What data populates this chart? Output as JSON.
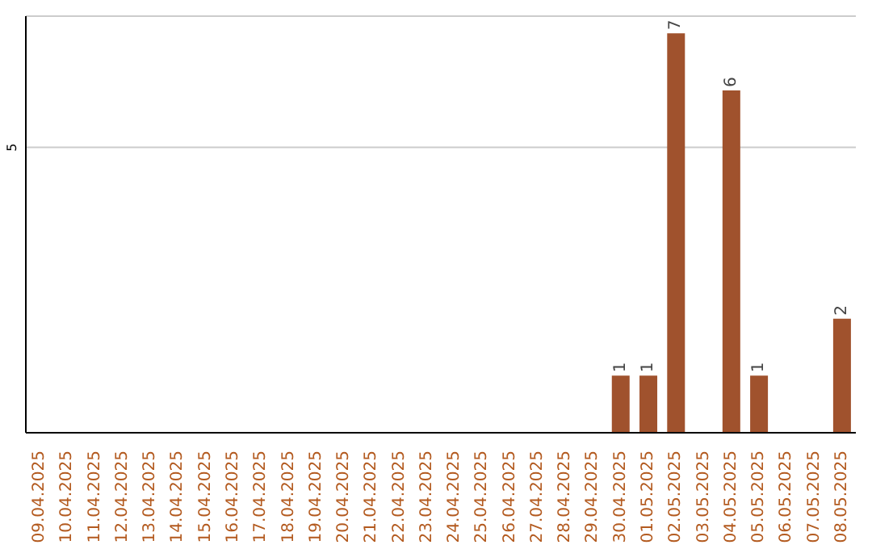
{
  "chart_data": {
    "type": "bar",
    "categories": [
      "09.04.2025",
      "10.04.2025",
      "11.04.2025",
      "12.04.2025",
      "13.04.2025",
      "14.04.2025",
      "15.04.2025",
      "16.04.2025",
      "17.04.2025",
      "18.04.2025",
      "19.04.2025",
      "20.04.2025",
      "21.04.2025",
      "22.04.2025",
      "23.04.2025",
      "24.04.2025",
      "25.04.2025",
      "26.04.2025",
      "27.04.2025",
      "28.04.2025",
      "29.04.2025",
      "30.04.2025",
      "01.05.2025",
      "02.05.2025",
      "03.05.2025",
      "04.05.2025",
      "05.05.2025",
      "06.05.2025",
      "07.05.2025",
      "08.05.2025"
    ],
    "values": [
      null,
      null,
      null,
      null,
      null,
      null,
      null,
      null,
      null,
      null,
      null,
      null,
      null,
      null,
      null,
      null,
      null,
      null,
      null,
      null,
      null,
      1,
      1,
      7,
      null,
      6,
      1,
      null,
      null,
      2
    ],
    "data_labels": true,
    "color": "#a0522d",
    "ylim": [
      0,
      7.3
    ],
    "yticks": [
      5
    ],
    "grid": "y"
  }
}
